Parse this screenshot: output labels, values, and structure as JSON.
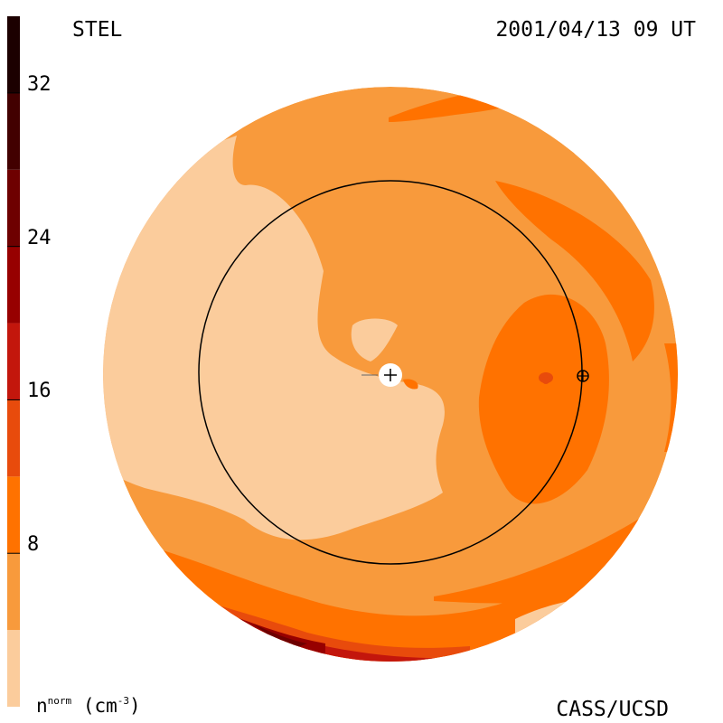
{
  "header": {
    "left_label": "STEL",
    "right_label": "2001/04/13 09 UT"
  },
  "footer": {
    "unit_base": "n",
    "unit_sup": "norm",
    "unit_paren": "(cm",
    "unit_exp": "-3",
    "unit_close": ")",
    "credit": "CASS/UCSD"
  },
  "colors": {
    "level_0": "#fbcc9c",
    "level_1": "#f89a3c",
    "level_2": "#ff7200",
    "level_3": "#e84b0c",
    "level_4": "#c3160c",
    "level_5": "#970000",
    "level_6": "#6e0000",
    "level_7": "#420000",
    "level_8": "#1c0000"
  },
  "chart_data": {
    "type": "heatmap",
    "colorbar": {
      "tick_labels": [
        "8",
        "16",
        "24",
        "32"
      ],
      "tick_values": [
        8,
        16,
        24,
        32
      ],
      "range": [
        0,
        36
      ],
      "band_width": 4,
      "band_colors": [
        "#fbcc9c",
        "#f89a3c",
        "#ff7200",
        "#e84b0c",
        "#c3160c",
        "#970000",
        "#6e0000",
        "#420000",
        "#1c0000"
      ]
    },
    "markers": [
      "sun-plus",
      "earth",
      "earth-center-dot"
    ]
  }
}
